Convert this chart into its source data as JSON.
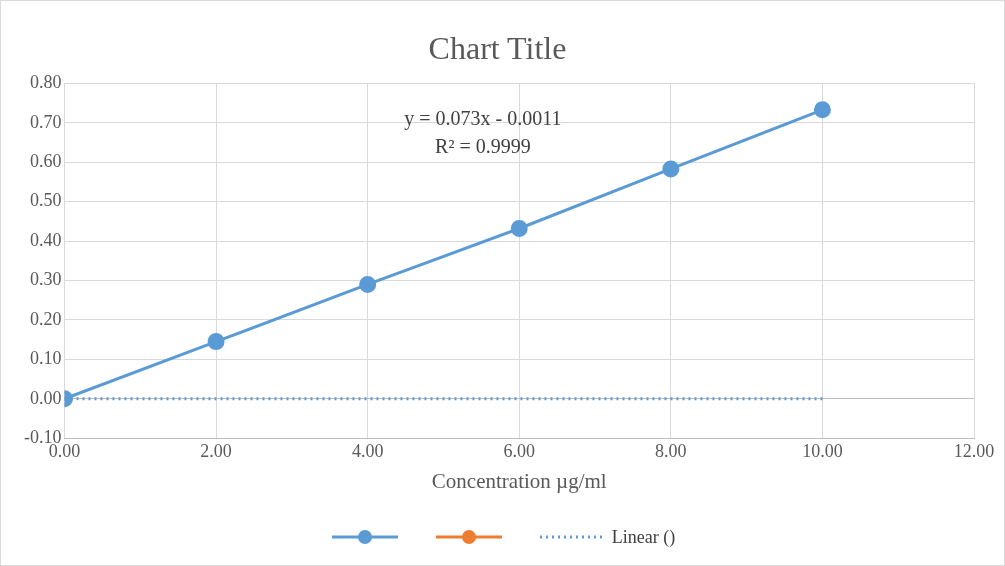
{
  "chart_data": {
    "type": "line",
    "title": "Chart Title",
    "xlabel": "Concentration µg/ml",
    "x": [
      0,
      2,
      4,
      6,
      8,
      10
    ],
    "xlim": [
      0,
      12
    ],
    "xticks": [
      {
        "value": 0,
        "label": "0.00"
      },
      {
        "value": 2,
        "label": "2.00"
      },
      {
        "value": 4,
        "label": "4.00"
      },
      {
        "value": 6,
        "label": "6.00"
      },
      {
        "value": 8,
        "label": "8.00"
      },
      {
        "value": 10,
        "label": "10.00"
      },
      {
        "value": 12,
        "label": "12.00"
      }
    ],
    "ylim": [
      -0.1,
      0.8
    ],
    "yticks": [
      {
        "value": -0.1,
        "label": "-0.10"
      },
      {
        "value": 0,
        "label": "0.00"
      },
      {
        "value": 0.1,
        "label": "0.10"
      },
      {
        "value": 0.2,
        "label": "0.20"
      },
      {
        "value": 0.3,
        "label": "0.30"
      },
      {
        "value": 0.4,
        "label": "0.40"
      },
      {
        "value": 0.5,
        "label": "0.50"
      },
      {
        "value": 0.6,
        "label": "0.60"
      },
      {
        "value": 0.7,
        "label": "0.70"
      },
      {
        "value": 0.8,
        "label": "0.80"
      }
    ],
    "grid": true,
    "legend": "bottom",
    "marker": "circle",
    "line_style": "solid",
    "annotations": [
      "y = 0.073x - 0.0011",
      "R² = 0.9999"
    ],
    "series": [
      {
        "color": "#5b9bd5",
        "values": [
          0,
          0.145,
          0.29,
          0.432,
          0.583,
          0.733
        ]
      },
      {
        "color": "#ed7d31",
        "values": [
          null,
          null,
          null,
          null,
          null,
          null
        ]
      },
      {
        "name": "Linear ()",
        "type": "line",
        "color": "#5b9bd5",
        "x": [
          0,
          10
        ],
        "values": [
          0,
          0
        ],
        "line_style": "dotted",
        "marker": "none"
      }
    ]
  }
}
